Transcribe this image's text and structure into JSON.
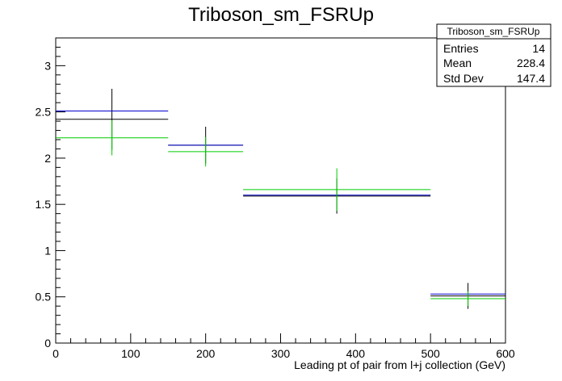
{
  "chart_data": {
    "type": "histogram",
    "title": "Triboson_sm_FSRUp",
    "xlabel": "Leading pt of pair from l+j collection (GeV)",
    "ylabel": "",
    "xlim": [
      0,
      600
    ],
    "ylim": [
      0,
      3.3
    ],
    "x_ticks": [
      0,
      100,
      200,
      300,
      400,
      500,
      600
    ],
    "y_ticks": [
      0,
      0.5,
      1,
      1.5,
      2,
      2.5,
      3
    ],
    "x_tick_labels": [
      "0",
      "100",
      "200",
      "300",
      "400",
      "500",
      "600"
    ],
    "y_tick_labels": [
      "0",
      "0.5",
      "1",
      "1.5",
      "2",
      "2.5",
      "3"
    ],
    "bins": [
      {
        "low": 0,
        "high": 150,
        "center": 75
      },
      {
        "low": 150,
        "high": 250,
        "center": 200
      },
      {
        "low": 250,
        "high": 500,
        "center": 375
      },
      {
        "low": 500,
        "high": 600,
        "center": 550
      }
    ],
    "series": [
      {
        "color": "#000000",
        "values": [
          2.42,
          2.14,
          1.59,
          0.51
        ],
        "errors": [
          0.33,
          0.2,
          0.19,
          0.14
        ]
      },
      {
        "color": "#0000cc",
        "values": [
          2.51,
          2.14,
          1.6,
          0.53
        ],
        "errors": [
          0,
          0,
          0,
          0
        ]
      },
      {
        "color": "#00cc00",
        "values": [
          2.22,
          2.07,
          1.66,
          0.48
        ],
        "errors": [
          0.19,
          0.16,
          0.23,
          0.08
        ]
      }
    ],
    "grid": false,
    "legend": "none"
  },
  "stats_box": {
    "title": "Triboson_sm_FSRUp",
    "rows": [
      {
        "label": "Entries",
        "value": "14"
      },
      {
        "label": "Mean",
        "value": "228.4"
      },
      {
        "label": "Std Dev",
        "value": "147.4"
      }
    ]
  }
}
